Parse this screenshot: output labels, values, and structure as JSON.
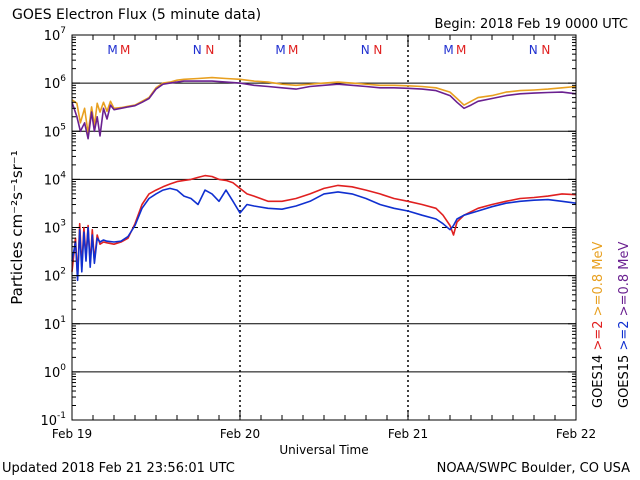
{
  "header": {
    "title": "GOES Electron Flux (5 minute data)",
    "begin": "Begin: 2018 Feb 19 0000 UTC"
  },
  "footer": {
    "updated": "Updated 2018 Feb 21 23:56:01 UTC",
    "credit": "NOAA/SWPC Boulder, CO USA"
  },
  "colors": {
    "goes14_08": "#e8a020",
    "goes15_08": "#6a2090",
    "goes14_2": "#e02020",
    "goes15_2": "#1030d0",
    "marker_m": "#2030d0",
    "marker_n": "#2030d0"
  },
  "chart_data": {
    "type": "line",
    "title": "GOES Electron Flux (5 minute data)",
    "xlabel": "Universal Time",
    "ylabel": "Particles cm⁻²s⁻¹sr⁻¹",
    "yscale": "log",
    "ylim": [
      0.1,
      10000000
    ],
    "xlim": [
      0,
      72
    ],
    "x_unit": "hours since 2018 Feb 19 0000 UTC",
    "x_ticks": [
      {
        "x": 0,
        "label": "Feb 19"
      },
      {
        "x": 24,
        "label": "Feb 20"
      },
      {
        "x": 48,
        "label": "Feb 21"
      },
      {
        "x": 72,
        "label": "Feb 22"
      }
    ],
    "y_ticks": [
      {
        "exp": "7"
      },
      {
        "exp": "6"
      },
      {
        "exp": "5"
      },
      {
        "exp": "4"
      },
      {
        "exp": "3"
      },
      {
        "exp": "2"
      },
      {
        "exp": "1"
      },
      {
        "exp": "0"
      },
      {
        "exp": "-1"
      }
    ],
    "threshold": 1000,
    "markers": [
      {
        "x": 5.8,
        "label": "M",
        "color": "#2030d0"
      },
      {
        "x": 7.6,
        "label": "M",
        "color": "#e02020"
      },
      {
        "x": 17.9,
        "label": "N",
        "color": "#2030d0"
      },
      {
        "x": 19.7,
        "label": "N",
        "color": "#e02020"
      },
      {
        "x": 29.8,
        "label": "M",
        "color": "#2030d0"
      },
      {
        "x": 31.6,
        "label": "M",
        "color": "#e02020"
      },
      {
        "x": 41.9,
        "label": "N",
        "color": "#2030d0"
      },
      {
        "x": 43.7,
        "label": "N",
        "color": "#e02020"
      },
      {
        "x": 53.8,
        "label": "M",
        "color": "#2030d0"
      },
      {
        "x": 55.6,
        "label": "M",
        "color": "#e02020"
      },
      {
        "x": 65.9,
        "label": "N",
        "color": "#2030d0"
      },
      {
        "x": 67.7,
        "label": "N",
        "color": "#e02020"
      }
    ],
    "legend": {
      "left_column": [
        {
          "text": "GOES14",
          "color": "#000000"
        },
        {
          "text": ">=2",
          "color": "#e02020"
        },
        {
          "text": ">=0.8 MeV",
          "color": "#e8a020"
        }
      ],
      "right_column": [
        {
          "text": "GOES15",
          "color": "#000000"
        },
        {
          "text": ">=2",
          "color": "#1030d0"
        },
        {
          "text": ">=0.8 MeV",
          "color": "#6a2090"
        }
      ]
    },
    "series": [
      {
        "name": "GOES14 >=0.8 MeV",
        "color": "#e8a020",
        "x": [
          0,
          0.7,
          1.2,
          1.8,
          2.3,
          2.8,
          3.2,
          3.6,
          4.0,
          4.5,
          5.0,
          5.5,
          6,
          7,
          8,
          9,
          10,
          11,
          12,
          13,
          14,
          15,
          16,
          18,
          20,
          22,
          24,
          26,
          28,
          30,
          32,
          34,
          36,
          38,
          40,
          42,
          44,
          46,
          48,
          50,
          52,
          54,
          55,
          56,
          57,
          58,
          60,
          62,
          64,
          66,
          68,
          70,
          72
        ],
        "y": [
          450000,
          380000,
          150000,
          300000,
          90000,
          320000,
          130000,
          380000,
          250000,
          400000,
          260000,
          420000,
          300000,
          310000,
          330000,
          350000,
          420000,
          500000,
          800000,
          1000000,
          1050000,
          1150000,
          1200000,
          1250000,
          1300000,
          1250000,
          1200000,
          1100000,
          1050000,
          950000,
          900000,
          950000,
          1000000,
          1050000,
          1000000,
          950000,
          900000,
          900000,
          880000,
          850000,
          800000,
          650000,
          480000,
          350000,
          420000,
          500000,
          550000,
          650000,
          700000,
          720000,
          750000,
          800000,
          850000
        ]
      },
      {
        "name": "GOES15 >=0.8 MeV",
        "color": "#6a2090",
        "x": [
          0,
          0.7,
          1.2,
          1.8,
          2.3,
          2.8,
          3.2,
          3.6,
          4.0,
          4.5,
          5.0,
          5.5,
          6,
          7,
          8,
          9,
          10,
          11,
          12,
          13,
          14,
          15,
          16,
          18,
          20,
          22,
          24,
          26,
          28,
          30,
          32,
          34,
          36,
          38,
          40,
          42,
          44,
          46,
          48,
          50,
          52,
          54,
          55,
          56,
          57,
          58,
          60,
          62,
          64,
          66,
          68,
          70,
          72
        ],
        "y": [
          400000,
          200000,
          100000,
          150000,
          70000,
          250000,
          100000,
          200000,
          80000,
          300000,
          180000,
          350000,
          280000,
          300000,
          320000,
          340000,
          400000,
          480000,
          750000,
          950000,
          1000000,
          1050000,
          1100000,
          1100000,
          1100000,
          1050000,
          1000000,
          900000,
          850000,
          800000,
          750000,
          850000,
          900000,
          950000,
          900000,
          850000,
          800000,
          800000,
          780000,
          750000,
          700000,
          550000,
          400000,
          300000,
          350000,
          420000,
          480000,
          550000,
          600000,
          620000,
          640000,
          650000,
          600000
        ]
      },
      {
        "name": "GOES14 >=2",
        "color": "#e02020",
        "x": [
          0,
          0.5,
          0.8,
          1.1,
          1.4,
          1.7,
          2.0,
          2.3,
          2.6,
          2.9,
          3.2,
          3.6,
          4.0,
          4.5,
          5.0,
          6,
          7,
          8,
          9,
          10,
          11,
          12,
          13,
          14,
          15,
          16,
          17,
          18,
          19,
          20,
          21,
          22,
          23,
          24,
          25,
          26,
          28,
          30,
          32,
          34,
          36,
          38,
          40,
          42,
          44,
          46,
          48,
          50,
          52,
          53,
          54,
          54.5,
          55,
          56,
          58,
          60,
          62,
          64,
          66,
          68,
          70,
          72
        ],
        "y": [
          120,
          600,
          90,
          1200,
          150,
          1000,
          250,
          1100,
          180,
          900,
          200,
          700,
          450,
          500,
          480,
          450,
          500,
          600,
          1200,
          3000,
          5000,
          6000,
          7000,
          8000,
          9000,
          9500,
          10000,
          11000,
          12000,
          11500,
          10000,
          9500,
          8500,
          6500,
          5000,
          4500,
          3500,
          3500,
          4000,
          5000,
          6500,
          7500,
          7000,
          6000,
          5000,
          4000,
          3500,
          3000,
          2500,
          1800,
          1100,
          700,
          1300,
          1800,
          2500,
          3000,
          3500,
          4000,
          4200,
          4500,
          5000,
          4800
        ]
      },
      {
        "name": "GOES15 >=2",
        "color": "#1030d0",
        "x": [
          0,
          0.5,
          0.8,
          1.1,
          1.4,
          1.7,
          2.0,
          2.3,
          2.6,
          2.9,
          3.2,
          3.6,
          4.0,
          4.5,
          5.0,
          6,
          7,
          8,
          9,
          10,
          11,
          12,
          13,
          14,
          15,
          16,
          17,
          18,
          19,
          20,
          21,
          22,
          23,
          24,
          25,
          26,
          28,
          30,
          32,
          34,
          36,
          38,
          40,
          42,
          44,
          46,
          48,
          50,
          52,
          53,
          54,
          54.5,
          55,
          56,
          58,
          60,
          62,
          64,
          66,
          68,
          70,
          72
        ],
        "y": [
          200,
          500,
          80,
          900,
          120,
          800,
          200,
          1000,
          150,
          700,
          180,
          600,
          500,
          550,
          520,
          500,
          520,
          650,
          1100,
          2500,
          4000,
          5000,
          6000,
          6500,
          6000,
          4500,
          4000,
          3000,
          6000,
          5000,
          3500,
          6000,
          3500,
          2000,
          3000,
          2800,
          2500,
          2400,
          2800,
          3500,
          5000,
          5500,
          5000,
          4000,
          3000,
          2500,
          2200,
          1800,
          1500,
          1200,
          900,
          1100,
          1500,
          1800,
          2200,
          2700,
          3200,
          3500,
          3700,
          3800,
          3500,
          3200
        ]
      }
    ]
  }
}
